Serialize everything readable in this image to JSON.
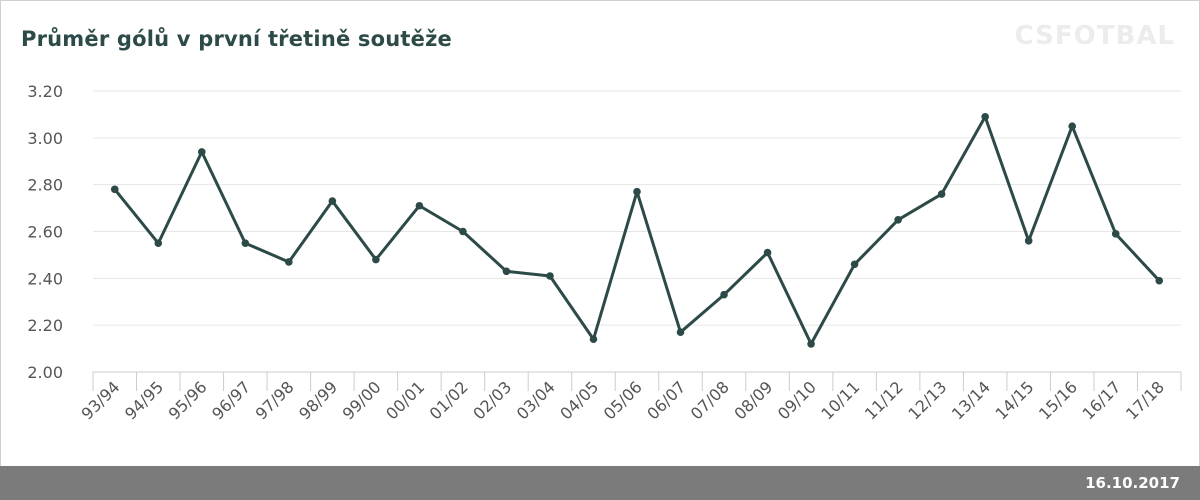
{
  "header": {
    "title": "Průměr gólů v první třetině soutěže",
    "brand": "CSFOTBAL"
  },
  "footer": {
    "date": "16.10.2017"
  },
  "colors": {
    "line": "#2c4a47",
    "grid": "#e6e6e6",
    "axis_text": "#555555",
    "footer_bg": "#7b7b7b"
  },
  "chart_data": {
    "type": "line",
    "title": "Průměr gólů v první třetině soutěže",
    "xlabel": "",
    "ylabel": "",
    "ylim": [
      2.0,
      3.2
    ],
    "yticks": [
      "2.00",
      "2.20",
      "2.40",
      "2.60",
      "2.80",
      "3.00",
      "3.20"
    ],
    "ytick_values": [
      2.0,
      2.2,
      2.4,
      2.6,
      2.8,
      3.0,
      3.2
    ],
    "grid": true,
    "categories": [
      "93/94",
      "94/95",
      "95/96",
      "96/97",
      "97/98",
      "98/99",
      "99/00",
      "00/01",
      "01/02",
      "02/03",
      "03/04",
      "04/05",
      "05/06",
      "06/07",
      "07/08",
      "08/09",
      "09/10",
      "10/11",
      "11/12",
      "12/13",
      "13/14",
      "14/15",
      "15/16",
      "16/17",
      "17/18"
    ],
    "series": [
      {
        "values": [
          2.78,
          2.55,
          2.94,
          2.55,
          2.47,
          2.73,
          2.48,
          2.71,
          2.6,
          2.43,
          2.41,
          2.14,
          2.77,
          2.17,
          2.33,
          2.51,
          2.12,
          2.46,
          2.65,
          2.76,
          3.09,
          2.56,
          3.05,
          2.59,
          2.39
        ]
      }
    ]
  }
}
